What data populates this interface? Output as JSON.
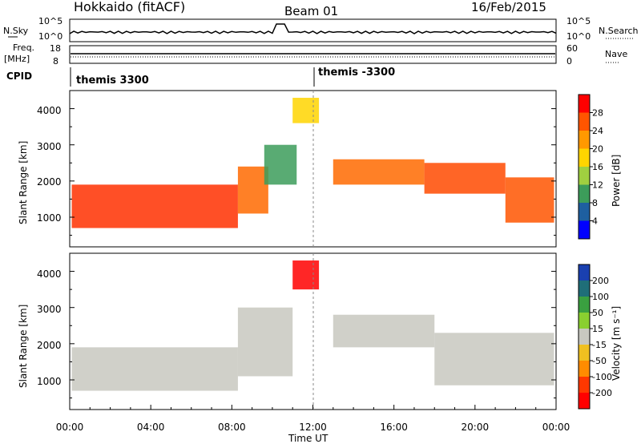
{
  "header": {
    "title": "Hokkaido (fitACF)",
    "beam": "Beam 01",
    "date": "16/Feb/2015"
  },
  "sky_panel": {
    "left_label": "N.Sky",
    "left_ticks": [
      "10^5",
      "10^0"
    ],
    "right_label": "N.Search",
    "right_ticks": [
      "10^5",
      "10^0"
    ]
  },
  "freq_panel": {
    "left_label_1": "Freq.",
    "left_label_2": "[MHz]",
    "left_ticks": [
      "18",
      "8"
    ],
    "right_label": "Nave",
    "right_ticks": [
      "60",
      "0"
    ]
  },
  "cpid_panel": {
    "label": "CPID",
    "segments": [
      "themis 3300",
      "themis -3300"
    ]
  },
  "power_panel": {
    "ylabel": "Slant Range [km]",
    "yticks": [
      "4000",
      "3000",
      "2000",
      "1000"
    ],
    "colorbar_label": "Power [dB]",
    "colorbar_ticks": [
      "28",
      "24",
      "20",
      "16",
      "12",
      "8",
      "4"
    ],
    "colorbar_colors": [
      "#ff0000",
      "#ff5500",
      "#ff9900",
      "#ffd500",
      "#a0d040",
      "#3c9c5a",
      "#1e5fa0",
      "#0000ff"
    ]
  },
  "velocity_panel": {
    "ylabel": "Slant Range [km]",
    "yticks": [
      "4000",
      "3000",
      "2000",
      "1000"
    ],
    "colorbar_label": "Velocity [m s⁻¹]",
    "colorbar_ticks": [
      "200",
      "100",
      "50",
      "15",
      "-15",
      "-50",
      "-100",
      "-200"
    ],
    "colorbar_colors": [
      "#1a40b0",
      "#1f6e78",
      "#3aa040",
      "#8ad030",
      "#c8c8c0",
      "#f0c020",
      "#ff8c00",
      "#ff3800",
      "#ff0000"
    ]
  },
  "xaxis": {
    "ticks": [
      "00:00",
      "04:00",
      "08:00",
      "12:00",
      "16:00",
      "20:00",
      "00:00"
    ],
    "label": "Time UT"
  },
  "chart_data": {
    "type": "heatmap",
    "x_range_hours": [
      0,
      24
    ],
    "y_range_km": [
      180,
      4500
    ],
    "marker_time_hours": 12.0,
    "power_regions": [
      {
        "t0": 0.1,
        "t1": 8.3,
        "r0": 700,
        "r1": 1900,
        "color": "#ff3000"
      },
      {
        "t0": 8.3,
        "t1": 9.8,
        "r0": 1100,
        "r1": 2400,
        "color": "#ff6a00"
      },
      {
        "t0": 9.6,
        "t1": 11.2,
        "r0": 1900,
        "r1": 3000,
        "color": "#3c9c5a"
      },
      {
        "t0": 13.0,
        "t1": 17.5,
        "r0": 1900,
        "r1": 2600,
        "color": "#ff6a00"
      },
      {
        "t0": 17.5,
        "t1": 21.5,
        "r0": 1650,
        "r1": 2500,
        "color": "#ff4a00"
      },
      {
        "t0": 21.5,
        "t1": 23.9,
        "r0": 850,
        "r1": 2100,
        "color": "#ff5500"
      },
      {
        "t0": 11.0,
        "t1": 12.3,
        "r0": 3600,
        "r1": 4300,
        "color": "#ffd500"
      }
    ],
    "velocity_regions": [
      {
        "t0": 0.1,
        "t1": 8.3,
        "r0": 700,
        "r1": 1900,
        "color": "#c8c8c0"
      },
      {
        "t0": 8.3,
        "t1": 11.0,
        "r0": 1100,
        "r1": 3000,
        "color": "#c8c8c0"
      },
      {
        "t0": 13.0,
        "t1": 18.0,
        "r0": 1900,
        "r1": 2800,
        "color": "#c8c8c0"
      },
      {
        "t0": 18.0,
        "t1": 23.9,
        "r0": 850,
        "r1": 2300,
        "color": "#c8c8c0"
      },
      {
        "t0": 11.0,
        "t1": 12.3,
        "r0": 3500,
        "r1": 4300,
        "color": "#ff0000"
      }
    ]
  }
}
